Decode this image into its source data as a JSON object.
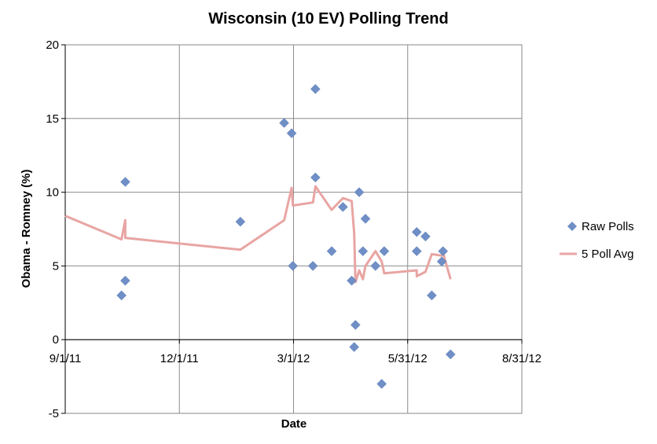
{
  "chart_data": {
    "type": "scatter",
    "title": "Wisconsin (10 EV) Polling Trend",
    "xlabel": "Date",
    "ylabel": "Obama - Romney (%)",
    "xlim": [
      "2011-09-01",
      "2012-08-31"
    ],
    "ylim": [
      -5,
      20
    ],
    "x_ticks": [
      "9/1/11",
      "12/1/11",
      "3/1/12",
      "5/31/12",
      "8/31/12"
    ],
    "y_ticks": [
      "-5",
      "0",
      "5",
      "10",
      "15",
      "20"
    ],
    "y_tick_values": [
      -5,
      0,
      5,
      10,
      15,
      20
    ],
    "grid": true,
    "legend_position": "right",
    "series": [
      {
        "name": "Raw Polls",
        "kind": "scatter",
        "color": "#6F8FC6",
        "marker": "diamond",
        "points": [
          {
            "x": "2011-10-16",
            "y": 3.0
          },
          {
            "x": "2011-10-19",
            "y": 4.0
          },
          {
            "x": "2011-10-19",
            "y": 10.7
          },
          {
            "x": "2012-01-19",
            "y": 8.0
          },
          {
            "x": "2012-02-23",
            "y": 14.7
          },
          {
            "x": "2012-02-29",
            "y": 14.0
          },
          {
            "x": "2012-03-01",
            "y": 5.0
          },
          {
            "x": "2012-03-17",
            "y": 5.0
          },
          {
            "x": "2012-03-19",
            "y": 17.0
          },
          {
            "x": "2012-03-19",
            "y": 11.0
          },
          {
            "x": "2012-04-01",
            "y": 6.0
          },
          {
            "x": "2012-04-10",
            "y": 9.0
          },
          {
            "x": "2012-04-17",
            "y": 4.0
          },
          {
            "x": "2012-04-19",
            "y": -0.5
          },
          {
            "x": "2012-04-20",
            "y": 1.0
          },
          {
            "x": "2012-04-23",
            "y": 10.0
          },
          {
            "x": "2012-04-26",
            "y": 6.0
          },
          {
            "x": "2012-04-28",
            "y": 8.2
          },
          {
            "x": "2012-05-06",
            "y": 5.0
          },
          {
            "x": "2012-05-11",
            "y": -3.0
          },
          {
            "x": "2012-05-13",
            "y": 6.0
          },
          {
            "x": "2012-06-08",
            "y": 7.3
          },
          {
            "x": "2012-06-08",
            "y": 6.0
          },
          {
            "x": "2012-06-15",
            "y": 7.0
          },
          {
            "x": "2012-06-20",
            "y": 3.0
          },
          {
            "x": "2012-06-28",
            "y": 5.3
          },
          {
            "x": "2012-06-29",
            "y": 6.0
          },
          {
            "x": "2012-07-05",
            "y": -1.0
          }
        ]
      },
      {
        "name": "5 Poll Avg",
        "kind": "line",
        "color": "#E8A5A3",
        "points": [
          {
            "x": "2011-09-01",
            "y": 8.4
          },
          {
            "x": "2011-10-16",
            "y": 6.8
          },
          {
            "x": "2011-10-19",
            "y": 8.1
          },
          {
            "x": "2011-10-19",
            "y": 6.9
          },
          {
            "x": "2012-01-19",
            "y": 6.1
          },
          {
            "x": "2012-02-23",
            "y": 8.1
          },
          {
            "x": "2012-02-29",
            "y": 10.3
          },
          {
            "x": "2012-03-01",
            "y": 9.1
          },
          {
            "x": "2012-03-17",
            "y": 9.3
          },
          {
            "x": "2012-03-19",
            "y": 10.4
          },
          {
            "x": "2012-04-01",
            "y": 8.8
          },
          {
            "x": "2012-04-10",
            "y": 9.6
          },
          {
            "x": "2012-04-17",
            "y": 9.4
          },
          {
            "x": "2012-04-19",
            "y": 7.2
          },
          {
            "x": "2012-04-20",
            "y": 3.9
          },
          {
            "x": "2012-04-23",
            "y": 4.7
          },
          {
            "x": "2012-04-26",
            "y": 4.1
          },
          {
            "x": "2012-04-28",
            "y": 5.0
          },
          {
            "x": "2012-05-06",
            "y": 6.0
          },
          {
            "x": "2012-05-11",
            "y": 5.3
          },
          {
            "x": "2012-05-13",
            "y": 4.5
          },
          {
            "x": "2012-06-08",
            "y": 4.7
          },
          {
            "x": "2012-06-08",
            "y": 4.3
          },
          {
            "x": "2012-06-15",
            "y": 4.6
          },
          {
            "x": "2012-06-20",
            "y": 5.8
          },
          {
            "x": "2012-06-28",
            "y": 5.7
          },
          {
            "x": "2012-06-29",
            "y": 5.9
          },
          {
            "x": "2012-07-05",
            "y": 4.1
          }
        ]
      }
    ]
  }
}
